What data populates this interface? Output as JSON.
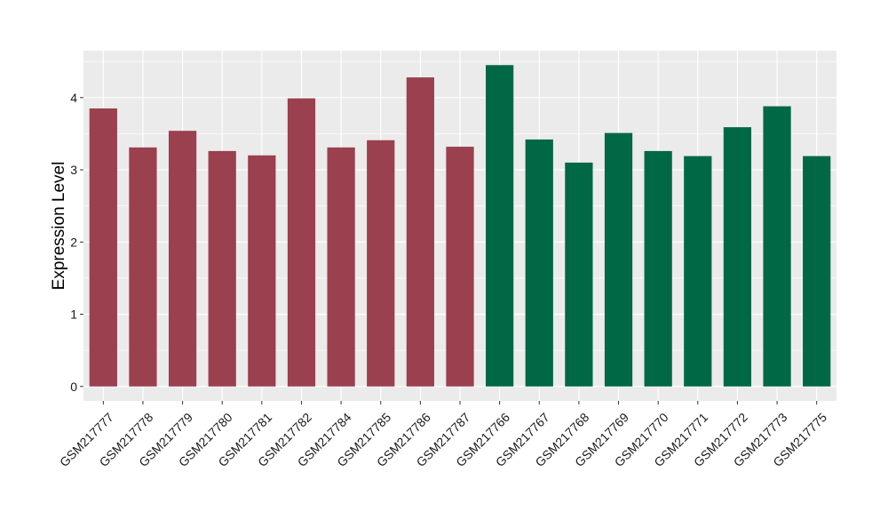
{
  "chart_data": {
    "type": "bar",
    "ylabel": "Expression Level",
    "xlabel": "",
    "ylim": [
      -0.2,
      4.65
    ],
    "yticks": [
      0,
      1,
      2,
      3,
      4
    ],
    "grid": true,
    "legend": "none",
    "panel_background": "#ebebeb",
    "grid_color": "#ffffff",
    "categories": [
      "GSM217777",
      "GSM217778",
      "GSM217779",
      "GSM217780",
      "GSM217781",
      "GSM217782",
      "GSM217784",
      "GSM217785",
      "GSM217786",
      "GSM217787",
      "GSM217766",
      "GSM217767",
      "GSM217768",
      "GSM217769",
      "GSM217770",
      "GSM217771",
      "GSM217772",
      "GSM217773",
      "GSM217775"
    ],
    "values": [
      3.85,
      3.31,
      3.54,
      3.26,
      3.2,
      3.99,
      3.31,
      3.41,
      4.28,
      3.32,
      4.45,
      3.42,
      3.1,
      3.51,
      3.26,
      3.19,
      3.59,
      3.88,
      3.19
    ],
    "group_colors": [
      "#9a404f",
      "#006845"
    ],
    "bar_groups": [
      0,
      0,
      0,
      0,
      0,
      0,
      0,
      0,
      0,
      0,
      1,
      1,
      1,
      1,
      1,
      1,
      1,
      1,
      1
    ]
  }
}
